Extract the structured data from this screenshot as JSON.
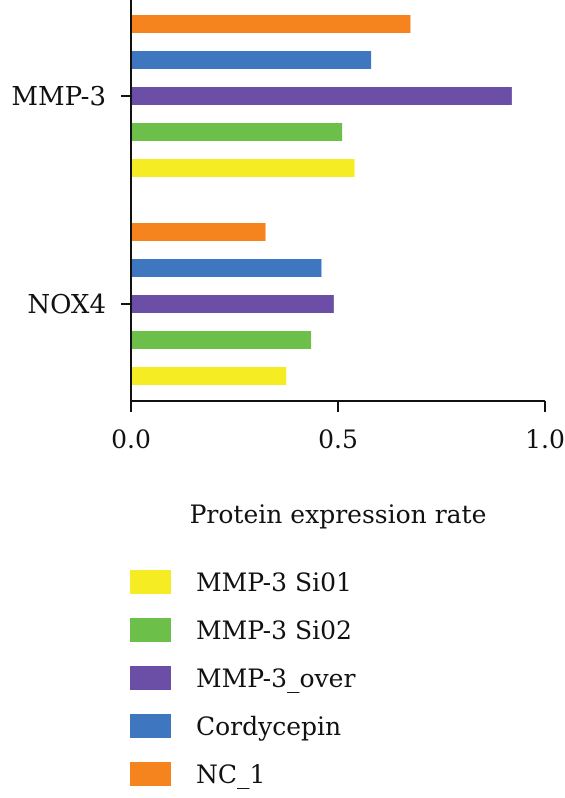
{
  "chart_data": {
    "type": "bar",
    "orientation": "horizontal",
    "categories": [
      "MMP-3",
      "NOX4"
    ],
    "series": [
      {
        "name": "NC_1",
        "color": "#f5841f",
        "values": [
          0.675,
          0.325
        ]
      },
      {
        "name": "Cordycepin",
        "color": "#3f76c0",
        "values": [
          0.58,
          0.46
        ]
      },
      {
        "name": "MMP-3_over",
        "color": "#6b4fa6",
        "values": [
          0.92,
          0.49
        ]
      },
      {
        "name": "MMP-3 Si02",
        "color": "#6cc04a",
        "values": [
          0.51,
          0.435
        ]
      },
      {
        "name": "MMP-3 Si01",
        "color": "#f5ec23",
        "values": [
          0.54,
          0.375
        ]
      }
    ],
    "xlabel": "Protein expression rate",
    "xlim": [
      0,
      1.0
    ],
    "xticks": [
      "0.0",
      "0.5",
      "1.0"
    ],
    "grid": false,
    "legend": {
      "position": "bottom",
      "entries": [
        "MMP-3 Si01",
        "MMP-3 Si02",
        "MMP-3_over",
        "Cordycepin",
        "NC_1"
      ]
    }
  }
}
